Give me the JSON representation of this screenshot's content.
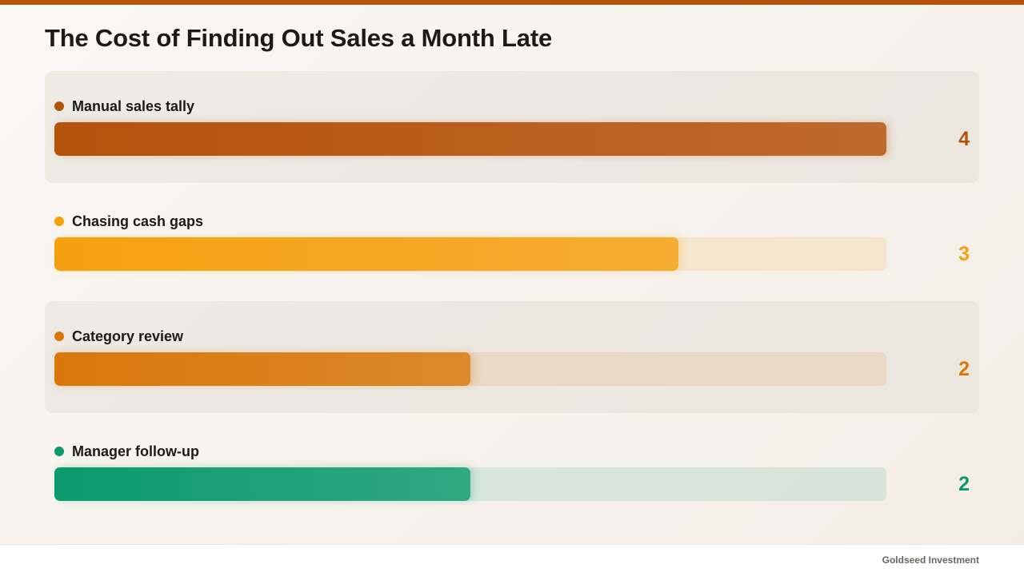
{
  "colors": {
    "accent": "#b5520c",
    "text": "#1c1a19"
  },
  "chart_data": {
    "type": "bar",
    "orientation": "horizontal",
    "title": "The Cost of Finding Out Sales a Month Late",
    "categories": [
      "Manual sales tally",
      "Chasing cash gaps",
      "Category review",
      "Manager follow-up"
    ],
    "values": [
      4,
      3,
      2,
      2
    ],
    "value_labels": [
      "4",
      "3",
      "2",
      "2"
    ],
    "xlim": [
      0,
      4
    ],
    "grid": false,
    "colors": [
      "#b5520c",
      "#f5a00f",
      "#d9770a",
      "#0b9a6d"
    ],
    "row_shading": [
      true,
      false,
      true,
      false
    ]
  },
  "footer": {
    "brand": "Goldseed Investment"
  }
}
